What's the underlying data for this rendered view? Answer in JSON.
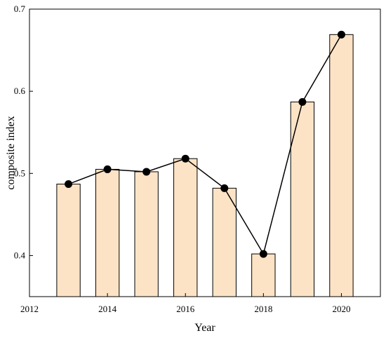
{
  "chart_data": {
    "type": "bar",
    "x": [
      2013,
      2014,
      2015,
      2016,
      2017,
      2018,
      2019,
      2020
    ],
    "values": [
      0.487,
      0.505,
      0.502,
      0.518,
      0.482,
      0.402,
      0.587,
      0.669
    ],
    "line_values": [
      0.487,
      0.505,
      0.502,
      0.518,
      0.482,
      0.402,
      0.587,
      0.669
    ],
    "xlabel": "Year",
    "ylabel": "composite index",
    "xlim": [
      2012,
      2021
    ],
    "ylim": [
      0.35,
      0.7
    ],
    "xticks": [
      "2012",
      "2014",
      "2016",
      "2018",
      "2020"
    ],
    "yticks": [
      "0.4",
      "0.5",
      "0.6",
      "0.7"
    ],
    "grid": false,
    "bar_color": "#fde3c6",
    "bar_edge_color": "#000000",
    "line_color": "#000000",
    "marker_color": "#000000"
  }
}
